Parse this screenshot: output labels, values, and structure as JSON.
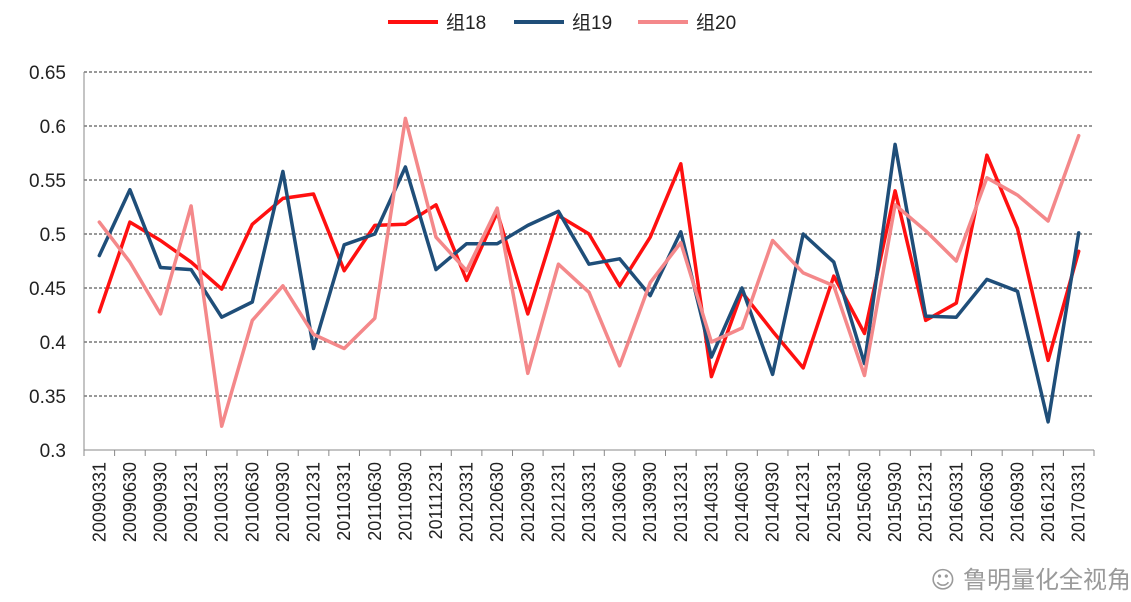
{
  "chart_data": {
    "type": "line",
    "title": "",
    "xlabel": "",
    "ylabel": "",
    "ylim": [
      0.3,
      0.65
    ],
    "yticks": [
      0.3,
      0.35,
      0.4,
      0.45,
      0.5,
      0.55,
      0.6,
      0.65
    ],
    "ytick_labels": [
      "0.3",
      "0.35",
      "0.4",
      "0.45",
      "0.5",
      "0.55",
      "0.6",
      "0.65"
    ],
    "grid": "horizontal-dashed",
    "legend": "top-center",
    "categories": [
      "20090331",
      "20090630",
      "20090930",
      "20091231",
      "20100331",
      "20100630",
      "20100930",
      "20101231",
      "20110331",
      "20110630",
      "20110930",
      "20111231",
      "20120331",
      "20120630",
      "20120930",
      "20121231",
      "20130331",
      "20130630",
      "20130930",
      "20131231",
      "20140331",
      "20140630",
      "20140930",
      "20141231",
      "20150331",
      "20150630",
      "20150930",
      "20151231",
      "20160331",
      "20160630",
      "20160930",
      "20161231",
      "20170331"
    ],
    "series": [
      {
        "name": "组18",
        "color": "#ff1010",
        "values": [
          0.428,
          0.511,
          0.494,
          0.474,
          0.449,
          0.509,
          0.533,
          0.537,
          0.466,
          0.508,
          0.509,
          0.527,
          0.457,
          0.52,
          0.426,
          0.517,
          0.5,
          0.452,
          0.497,
          0.565,
          0.368,
          0.446,
          0.41,
          0.376,
          0.461,
          0.408,
          0.54,
          0.42,
          0.436,
          0.573,
          0.505,
          0.383,
          0.484
        ]
      },
      {
        "name": "组19",
        "color": "#1f4e79",
        "values": [
          0.48,
          0.541,
          0.469,
          0.467,
          0.423,
          0.437,
          0.558,
          0.394,
          0.49,
          0.5,
          0.562,
          0.467,
          0.491,
          0.491,
          0.508,
          0.521,
          0.472,
          0.477,
          0.443,
          0.502,
          0.386,
          0.45,
          0.37,
          0.5,
          0.474,
          0.38,
          0.583,
          0.424,
          0.423,
          0.458,
          0.447,
          0.326,
          0.501
        ]
      },
      {
        "name": "组20",
        "color": "#f4888a",
        "values": [
          0.511,
          0.474,
          0.426,
          0.526,
          0.322,
          0.42,
          0.452,
          0.407,
          0.394,
          0.422,
          0.607,
          0.497,
          0.466,
          0.524,
          0.371,
          0.472,
          0.446,
          0.378,
          0.455,
          0.492,
          0.4,
          0.413,
          0.494,
          0.464,
          0.452,
          0.369,
          0.527,
          0.503,
          0.475,
          0.552,
          0.536,
          0.512,
          0.591
        ]
      }
    ]
  },
  "watermark": {
    "text": "鲁明量化全视角",
    "icon": "wechat-icon"
  }
}
